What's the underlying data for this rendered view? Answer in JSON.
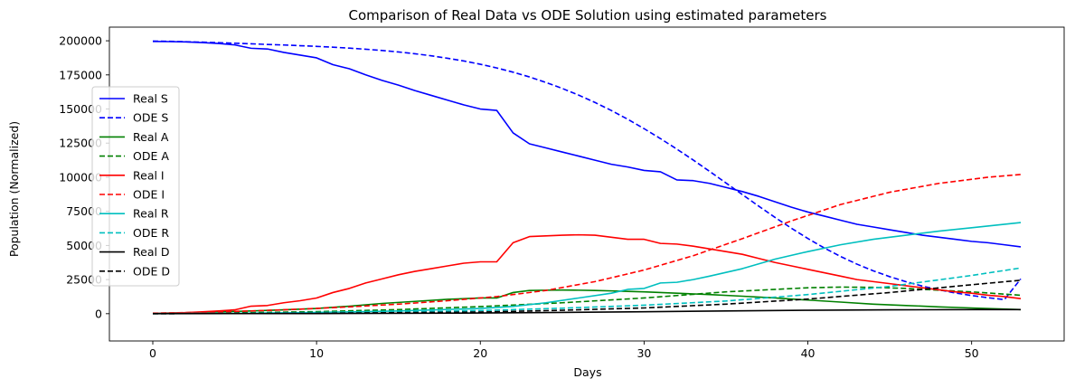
{
  "chart_data": {
    "type": "line",
    "title": "Comparison of Real Data vs ODE Solution using estimated parameters",
    "xlabel": "Days",
    "ylabel": "Population (Normalized)",
    "xlim": [
      -2.65,
      55.65
    ],
    "ylim": [
      -20000,
      210000
    ],
    "xticks": [
      0,
      10,
      20,
      30,
      40,
      50
    ],
    "yticks": [
      0,
      25000,
      50000,
      75000,
      100000,
      125000,
      150000,
      175000,
      200000
    ],
    "legend_position": "center-left",
    "series": [
      {
        "name": "Real S",
        "color": "#0000ff",
        "style": "solid",
        "x": [
          0,
          1,
          2,
          3,
          4,
          5,
          6,
          7,
          8,
          9,
          10,
          11,
          12,
          13,
          14,
          15,
          16,
          17,
          18,
          19,
          20,
          21,
          22,
          23,
          24,
          25,
          26,
          27,
          28,
          29,
          30,
          31,
          32,
          33,
          34,
          35,
          36,
          37,
          38,
          39,
          40,
          41,
          42,
          43,
          44,
          45,
          46,
          47,
          48,
          49,
          50,
          51,
          52,
          53
        ],
        "y": [
          199500,
          199400,
          199200,
          198700,
          198000,
          197000,
          194500,
          194000,
          191500,
          189500,
          187500,
          182500,
          179500,
          175000,
          171000,
          167500,
          163500,
          160000,
          156500,
          153000,
          150000,
          149000,
          132500,
          124500,
          121500,
          118500,
          115500,
          112500,
          109500,
          107500,
          105000,
          104000,
          98000,
          97500,
          95500,
          92500,
          89500,
          86000,
          82000,
          78000,
          74500,
          71500,
          68500,
          65500,
          63500,
          61500,
          59500,
          57500,
          56000,
          54500,
          53000,
          52000,
          50500,
          49000
        ]
      },
      {
        "name": "ODE S",
        "color": "#0000ff",
        "style": "dashed",
        "x": [
          0,
          1,
          2,
          3,
          4,
          5,
          6,
          7,
          8,
          9,
          10,
          11,
          12,
          13,
          14,
          15,
          16,
          17,
          18,
          19,
          20,
          21,
          22,
          23,
          24,
          25,
          26,
          27,
          28,
          29,
          30,
          31,
          32,
          33,
          34,
          35,
          36,
          37,
          38,
          39,
          40,
          41,
          42,
          43,
          44,
          45,
          46,
          47,
          48,
          49,
          50,
          51,
          52,
          53
        ],
        "y": [
          199800,
          199600,
          199300,
          199000,
          198600,
          198200,
          197800,
          197300,
          196900,
          196400,
          195900,
          195300,
          194600,
          193800,
          192900,
          191800,
          190500,
          189000,
          187200,
          185200,
          182800,
          180100,
          177000,
          173500,
          169500,
          165100,
          160200,
          154800,
          148900,
          142500,
          135600,
          128300,
          120600,
          112600,
          104300,
          95800,
          87300,
          78800,
          70500,
          62600,
          55100,
          48200,
          41900,
          36300,
          31400,
          27100,
          23400,
          20200,
          17500,
          15200,
          13300,
          11700,
          10300,
          25500
        ]
      },
      {
        "name": "Real A",
        "color": "#008000",
        "style": "solid",
        "x": [
          0,
          2,
          4,
          6,
          8,
          10,
          12,
          14,
          16,
          18,
          20,
          21,
          22,
          23,
          24,
          25,
          26,
          27,
          28,
          29,
          30,
          32,
          34,
          36,
          38,
          40,
          42,
          44,
          46,
          48,
          50,
          53
        ],
        "y": [
          300,
          700,
          1300,
          2000,
          2800,
          3800,
          5500,
          7500,
          9000,
          10500,
          11500,
          11500,
          15500,
          17000,
          17200,
          17300,
          17200,
          17000,
          16700,
          16300,
          16000,
          15000,
          14000,
          12800,
          11500,
          10000,
          8500,
          7000,
          6000,
          5000,
          4200,
          3000
        ]
      },
      {
        "name": "ODE A",
        "color": "#008000",
        "style": "dashed",
        "x": [
          0,
          5,
          10,
          15,
          20,
          25,
          30,
          35,
          40,
          42,
          44,
          46,
          48,
          50,
          53
        ],
        "y": [
          200,
          600,
          1500,
          3000,
          5200,
          8000,
          11500,
          16000,
          19000,
          19500,
          19300,
          18500,
          17200,
          16000,
          13500
        ]
      },
      {
        "name": "Real I",
        "color": "#ff0000",
        "style": "solid",
        "x": [
          0,
          1,
          2,
          3,
          4,
          5,
          6,
          7,
          8,
          9,
          10,
          11,
          12,
          13,
          14,
          15,
          16,
          17,
          18,
          19,
          20,
          21,
          22,
          23,
          24,
          25,
          26,
          27,
          28,
          29,
          30,
          31,
          32,
          33,
          34,
          35,
          36,
          37,
          38,
          39,
          40,
          41,
          42,
          43,
          44,
          45,
          46,
          47,
          48,
          49,
          50,
          51,
          52,
          53
        ],
        "y": [
          200,
          400,
          800,
          1300,
          2000,
          2800,
          5500,
          6000,
          8000,
          9500,
          11500,
          15500,
          18500,
          22500,
          25500,
          28500,
          31000,
          33000,
          35000,
          37000,
          38000,
          38000,
          52000,
          56500,
          57000,
          57500,
          57800,
          57500,
          56000,
          54500,
          54500,
          51500,
          51000,
          49500,
          47500,
          45500,
          43500,
          40500,
          37500,
          35000,
          32500,
          30000,
          27500,
          25000,
          23500,
          22000,
          20500,
          19000,
          17500,
          16000,
          15000,
          13500,
          12500,
          11000
        ]
      },
      {
        "name": "ODE I",
        "color": "#ff0000",
        "style": "dashed",
        "x": [
          0,
          3,
          6,
          9,
          12,
          15,
          18,
          21,
          24,
          27,
          30,
          33,
          36,
          39,
          42,
          45,
          48,
          51,
          53
        ],
        "y": [
          400,
          1000,
          2000,
          3300,
          5000,
          7000,
          9500,
          12500,
          17000,
          23500,
          32000,
          42500,
          55000,
          68000,
          80000,
          89000,
          95500,
          100000,
          102000
        ]
      },
      {
        "name": "Real R",
        "color": "#00bfbf",
        "style": "solid",
        "x": [
          0,
          5,
          10,
          15,
          20,
          22,
          24,
          26,
          28,
          29,
          30,
          31,
          32,
          33,
          34,
          36,
          38,
          40,
          42,
          44,
          46,
          48,
          50,
          53
        ],
        "y": [
          100,
          300,
          900,
          2000,
          3800,
          5300,
          8000,
          11500,
          15000,
          17800,
          18500,
          22500,
          23000,
          25000,
          27500,
          33000,
          40000,
          45500,
          50500,
          54500,
          57500,
          60500,
          63000,
          66800
        ]
      },
      {
        "name": "ODE R",
        "color": "#00bfbf",
        "style": "dashed",
        "x": [
          0,
          5,
          10,
          15,
          20,
          25,
          30,
          35,
          40,
          45,
          50,
          53
        ],
        "y": [
          0,
          150,
          500,
          1200,
          2300,
          4000,
          6200,
          9300,
          14000,
          20000,
          28000,
          33500
        ]
      },
      {
        "name": "Real D",
        "color": "#000000",
        "style": "solid",
        "x": [
          0,
          10,
          20,
          25,
          30,
          35,
          40,
          45,
          50,
          53
        ],
        "y": [
          0,
          100,
          500,
          900,
          1400,
          2000,
          2500,
          2800,
          3000,
          3000
        ]
      },
      {
        "name": "ODE D",
        "color": "#000000",
        "style": "dashed",
        "x": [
          0,
          10,
          20,
          25,
          30,
          35,
          40,
          45,
          50,
          53
        ],
        "y": [
          0,
          300,
          1200,
          2500,
          4200,
          7000,
          10700,
          15500,
          21200,
          24500
        ]
      }
    ]
  }
}
